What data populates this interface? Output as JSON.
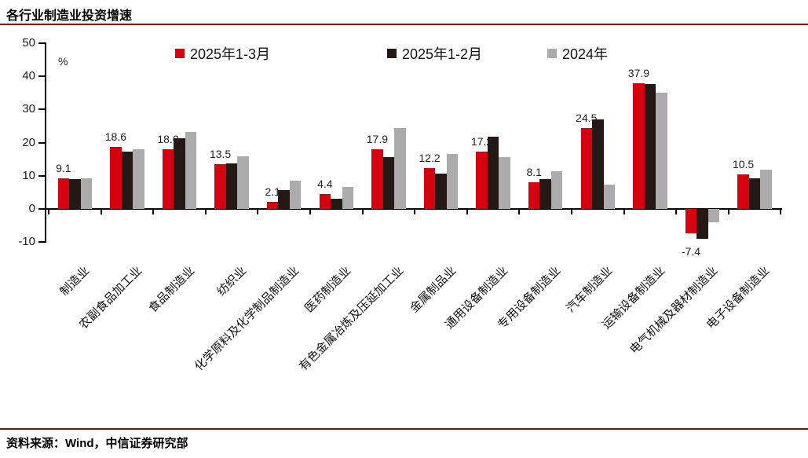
{
  "header": {
    "title": "各行业制造业投资增速"
  },
  "footer": {
    "source": "资料来源：Wind，中信证券研究部"
  },
  "colors": {
    "accent_rule": "#a80000",
    "axis": "#000000",
    "series_red": "#d7000f",
    "series_black": "#231815",
    "series_gray": "#ababab"
  },
  "chart_data": {
    "type": "bar",
    "title": "各行业制造业投资增速",
    "unit_label": "%",
    "xlabel": "",
    "ylabel": "%",
    "ylim": [
      -10,
      50
    ],
    "yticks": [
      50,
      40,
      30,
      20,
      10,
      0,
      -10
    ],
    "grid": false,
    "legend_position": "top-center",
    "categories": [
      "制造业",
      "农副食品加工业",
      "食品制造业",
      "纺织业",
      "化学原料及化学制品制造业",
      "医药制造业",
      "有色金属冶炼及压延加工业",
      "金属制品业",
      "通用设备制造业",
      "专用设备制造业",
      "汽车制造业",
      "运输设备制造业",
      "电气机械及器材制造业",
      "电子设备制造业"
    ],
    "series": [
      {
        "name": "2025年1-3月",
        "color": "#d7000f",
        "data_labels": true,
        "values": [
          9.1,
          18.6,
          18.0,
          13.5,
          2.1,
          4.4,
          17.9,
          12.2,
          17.2,
          8.1,
          24.5,
          37.9,
          -7.4,
          10.5
        ]
      },
      {
        "name": "2025年1-2月",
        "color": "#231815",
        "data_labels": false,
        "values": [
          9.0,
          17.3,
          21.2,
          13.8,
          5.6,
          3.1,
          15.7,
          10.6,
          21.7,
          9.0,
          27.0,
          37.6,
          -9.0,
          9.3
        ]
      },
      {
        "name": "2024年",
        "color": "#ababab",
        "data_labels": false,
        "values": [
          9.2,
          18.1,
          23.1,
          15.8,
          8.4,
          6.7,
          24.4,
          16.5,
          15.5,
          11.4,
          7.2,
          35.1,
          -4.1,
          11.7
        ]
      }
    ]
  }
}
